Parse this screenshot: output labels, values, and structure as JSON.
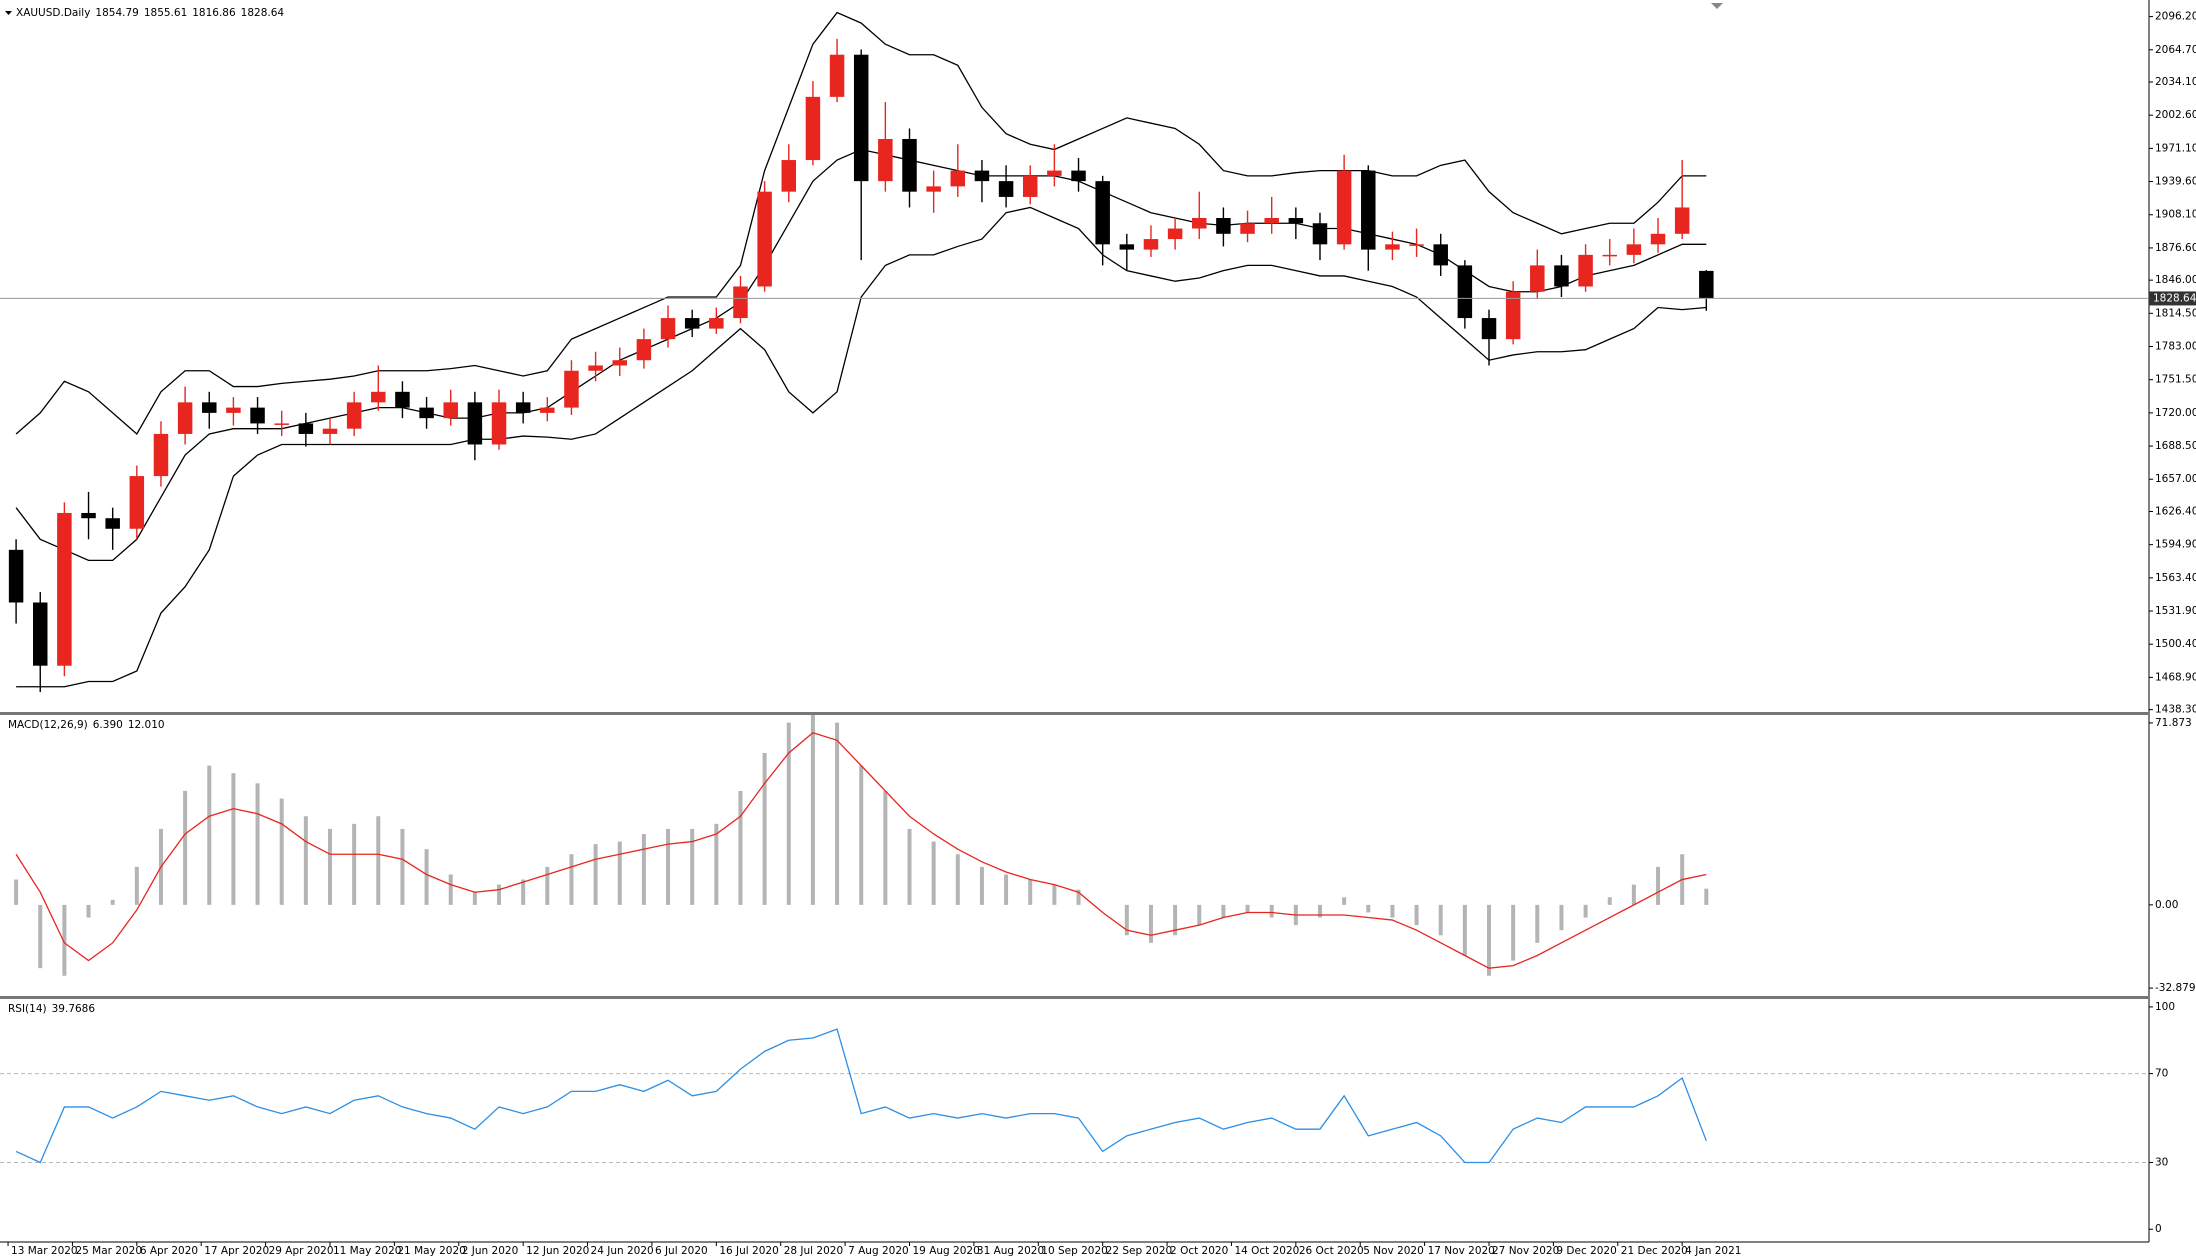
{
  "chart_data": [
    {
      "type": "candlestick",
      "title": "XAUUSD.Daily",
      "up_color": "#e8251f",
      "down_color": "#000000",
      "band_color": "#000000",
      "price_line_color": "#9a9a9a",
      "x": [
        1,
        4,
        7,
        10,
        13,
        16,
        19,
        22,
        25,
        28,
        31,
        34,
        37,
        40,
        43,
        46,
        49,
        52,
        55,
        58,
        61,
        64,
        67,
        70,
        73,
        76,
        79,
        82,
        85,
        88,
        91,
        94,
        97,
        100,
        103,
        106,
        109,
        112,
        115,
        118,
        121,
        124,
        127,
        130,
        133,
        136,
        139,
        142,
        145,
        148,
        151,
        154,
        157,
        160,
        163,
        166,
        169,
        172,
        175,
        178,
        181,
        184,
        187,
        190,
        193,
        196,
        199,
        202,
        205,
        208,
        211
      ],
      "open": [
        1590,
        1540,
        1480,
        1625,
        1620,
        1610,
        1660,
        1700,
        1730,
        1720,
        1725,
        1710,
        1710,
        1700,
        1705,
        1730,
        1740,
        1725,
        1715,
        1730,
        1690,
        1730,
        1720,
        1725,
        1760,
        1765,
        1770,
        1790,
        1810,
        1800,
        1810,
        1840,
        1930,
        1960,
        2020,
        2060,
        1940,
        1980,
        1930,
        1935,
        1950,
        1940,
        1925,
        1945,
        1950,
        1940,
        1880,
        1875,
        1885,
        1895,
        1905,
        1890,
        1900,
        1905,
        1900,
        1880,
        1950,
        1875,
        1880,
        1880,
        1860,
        1810,
        1790,
        1835,
        1860,
        1840,
        1870,
        1870,
        1880,
        1890,
        1854.79
      ],
      "high": [
        1600,
        1550,
        1635,
        1645,
        1630,
        1670,
        1712,
        1745,
        1740,
        1735,
        1735,
        1722,
        1720,
        1715,
        1740,
        1765,
        1750,
        1735,
        1742,
        1740,
        1742,
        1740,
        1735,
        1770,
        1778,
        1782,
        1800,
        1822,
        1818,
        1820,
        1850,
        1940,
        1975,
        2035,
        2075,
        2065,
        2015,
        1990,
        1950,
        1975,
        1960,
        1955,
        1955,
        1975,
        1962,
        1945,
        1890,
        1898,
        1905,
        1930,
        1915,
        1912,
        1925,
        1915,
        1910,
        1965,
        1955,
        1892,
        1895,
        1890,
        1865,
        1818,
        1845,
        1875,
        1870,
        1880,
        1885,
        1895,
        1905,
        1960,
        1855.61
      ],
      "low": [
        1520,
        1455,
        1470,
        1600,
        1590,
        1600,
        1650,
        1690,
        1705,
        1708,
        1700,
        1698,
        1688,
        1690,
        1698,
        1722,
        1715,
        1705,
        1708,
        1675,
        1685,
        1710,
        1712,
        1718,
        1750,
        1755,
        1762,
        1782,
        1792,
        1795,
        1805,
        1835,
        1920,
        1955,
        2015,
        1865,
        1930,
        1915,
        1910,
        1925,
        1920,
        1915,
        1918,
        1935,
        1930,
        1860,
        1855,
        1868,
        1875,
        1885,
        1878,
        1882,
        1890,
        1885,
        1865,
        1875,
        1855,
        1865,
        1868,
        1850,
        1800,
        1765,
        1785,
        1828,
        1830,
        1835,
        1860,
        1862,
        1872,
        1885,
        1816.86
      ],
      "close": [
        1540,
        1480,
        1625,
        1620,
        1610,
        1660,
        1700,
        1730,
        1720,
        1725,
        1710,
        1710,
        1700,
        1705,
        1730,
        1740,
        1725,
        1715,
        1730,
        1690,
        1730,
        1720,
        1725,
        1760,
        1765,
        1770,
        1790,
        1810,
        1800,
        1810,
        1840,
        1930,
        1960,
        2020,
        2060,
        1940,
        1980,
        1930,
        1935,
        1950,
        1940,
        1925,
        1945,
        1950,
        1940,
        1880,
        1875,
        1885,
        1895,
        1905,
        1890,
        1900,
        1905,
        1900,
        1880,
        1950,
        1875,
        1880,
        1880,
        1860,
        1810,
        1790,
        1835,
        1860,
        1840,
        1870,
        1870,
        1880,
        1890,
        1915,
        1828.64
      ],
      "bands": {
        "upper": [
          1700,
          1720,
          1750,
          1740,
          1720,
          1700,
          1740,
          1760,
          1760,
          1745,
          1745,
          1748,
          1750,
          1752,
          1755,
          1760,
          1760,
          1760,
          1762,
          1765,
          1760,
          1755,
          1760,
          1790,
          1800,
          1810,
          1820,
          1830,
          1830,
          1830,
          1860,
          1950,
          2010,
          2070,
          2100,
          2090,
          2070,
          2060,
          2060,
          2050,
          2010,
          1985,
          1975,
          1970,
          1980,
          1990,
          2000,
          1995,
          1990,
          1975,
          1950,
          1945,
          1945,
          1948,
          1950,
          1950,
          1950,
          1945,
          1945,
          1955,
          1960,
          1930,
          1910,
          1900,
          1890,
          1895,
          1900,
          1900,
          1920,
          1945,
          1945
        ],
        "middle": [
          1630,
          1600,
          1590,
          1580,
          1580,
          1600,
          1640,
          1680,
          1700,
          1705,
          1705,
          1705,
          1710,
          1715,
          1720,
          1725,
          1725,
          1720,
          1715,
          1715,
          1720,
          1720,
          1725,
          1740,
          1755,
          1770,
          1780,
          1790,
          1800,
          1810,
          1825,
          1860,
          1900,
          1940,
          1960,
          1970,
          1965,
          1960,
          1955,
          1950,
          1945,
          1945,
          1945,
          1945,
          1940,
          1930,
          1920,
          1910,
          1905,
          1900,
          1898,
          1900,
          1900,
          1900,
          1895,
          1895,
          1890,
          1885,
          1880,
          1870,
          1855,
          1840,
          1835,
          1835,
          1840,
          1850,
          1855,
          1860,
          1870,
          1880,
          1880
        ],
        "lower": [
          1460,
          1460,
          1460,
          1465,
          1465,
          1475,
          1530,
          1555,
          1590,
          1660,
          1680,
          1690,
          1690,
          1690,
          1690,
          1690,
          1690,
          1690,
          1690,
          1695,
          1695,
          1698,
          1697,
          1695,
          1700,
          1715,
          1730,
          1745,
          1760,
          1780,
          1800,
          1780,
          1740,
          1720,
          1740,
          1830,
          1860,
          1870,
          1870,
          1878,
          1885,
          1910,
          1915,
          1905,
          1895,
          1870,
          1855,
          1850,
          1845,
          1848,
          1855,
          1860,
          1860,
          1855,
          1850,
          1850,
          1845,
          1840,
          1830,
          1810,
          1790,
          1770,
          1775,
          1778,
          1778,
          1780,
          1790,
          1800,
          1820,
          1818,
          1820
        ]
      },
      "xlim": [
        -1,
        266
      ],
      "ylim": [
        1437,
        2101.5
      ],
      "yticks": [
        {
          "value": 2096.2,
          "label": "2096.20"
        },
        {
          "value": 2064.7,
          "label": "2064.70"
        },
        {
          "value": 2034.1,
          "label": "2034.10"
        },
        {
          "value": 2002.6,
          "label": "2002.60"
        },
        {
          "value": 1971.1,
          "label": "1971.10"
        },
        {
          "value": 1939.6,
          "label": "1939.60"
        },
        {
          "value": 1908.1,
          "label": "1908.10"
        },
        {
          "value": 1876.6,
          "label": "1876.60"
        },
        {
          "value": 1846,
          "label": "1846.00"
        },
        {
          "value": 1814.5,
          "label": "1814.50"
        },
        {
          "value": 1783,
          "label": "1783.00"
        },
        {
          "value": 1751.5,
          "label": "1751.50"
        },
        {
          "value": 1720,
          "label": "1720.00"
        },
        {
          "value": 1688.5,
          "label": "1688.50"
        },
        {
          "value": 1657,
          "label": "1657.00"
        },
        {
          "value": 1626.4,
          "label": "1626.40"
        },
        {
          "value": 1594.9,
          "label": "1594.90"
        },
        {
          "value": 1563.4,
          "label": "1563.40"
        },
        {
          "value": 1531.9,
          "label": "1531.90"
        },
        {
          "value": 1500.4,
          "label": "1500.40"
        },
        {
          "value": 1468.9,
          "label": "1468.90"
        },
        {
          "value": 1438.3,
          "label": "1438.30"
        }
      ]
    },
    {
      "type": "macd",
      "title": "MACD(12,26,9)",
      "histogram_color": "#b4b4b4",
      "signal_color": "#e8251f",
      "x": [
        1,
        4,
        7,
        10,
        13,
        16,
        19,
        22,
        25,
        28,
        31,
        34,
        37,
        40,
        43,
        46,
        49,
        52,
        55,
        58,
        61,
        64,
        67,
        70,
        73,
        76,
        79,
        82,
        85,
        88,
        91,
        94,
        97,
        100,
        103,
        106,
        109,
        112,
        115,
        118,
        121,
        124,
        127,
        130,
        133,
        136,
        139,
        142,
        145,
        148,
        151,
        154,
        157,
        160,
        163,
        166,
        169,
        172,
        175,
        178,
        181,
        184,
        187,
        190,
        193,
        196,
        199,
        202,
        205,
        208,
        211
      ],
      "histogram": [
        10,
        -25,
        -28,
        -5,
        2,
        15,
        30,
        45,
        55,
        52,
        48,
        42,
        35,
        30,
        32,
        35,
        30,
        22,
        12,
        5,
        8,
        10,
        15,
        20,
        24,
        25,
        28,
        30,
        30,
        32,
        45,
        60,
        72,
        75,
        72,
        55,
        45,
        30,
        25,
        20,
        15,
        12,
        10,
        8,
        6,
        0,
        -12,
        -15,
        -12,
        -8,
        -5,
        -3,
        -5,
        -8,
        -5,
        3,
        -3,
        -5,
        -8,
        -12,
        -20,
        -28,
        -22,
        -15,
        -10,
        -5,
        3,
        8,
        15,
        20,
        6.39
      ],
      "histogram_value_labels": [
        null,
        null,
        null,
        null,
        null,
        null,
        null,
        null,
        null,
        null,
        null,
        null,
        null,
        null,
        null,
        null,
        null,
        null,
        null,
        null,
        null,
        null,
        null,
        null,
        null,
        null,
        null,
        null,
        null,
        null,
        null,
        null,
        null,
        null,
        null,
        null,
        null,
        null,
        null,
        null,
        null,
        null,
        null,
        null,
        null,
        null,
        null,
        null,
        null,
        null,
        null,
        null,
        null,
        null,
        null,
        null,
        null,
        null,
        null,
        null,
        null,
        null,
        null,
        null,
        null,
        null,
        null,
        null,
        null,
        null,
        "6.390"
      ],
      "signal": [
        20,
        5,
        -15,
        -22,
        -15,
        -2,
        15,
        28,
        35,
        38,
        36,
        32,
        25,
        20,
        20,
        20,
        18,
        12,
        8,
        5,
        6,
        9,
        12,
        15,
        18,
        20,
        22,
        24,
        25,
        28,
        35,
        48,
        60,
        68,
        65,
        55,
        45,
        35,
        28,
        22,
        17,
        13,
        10,
        8,
        5,
        -3,
        -10,
        -12,
        -10,
        -8,
        -5,
        -3,
        -3,
        -4,
        -4,
        -4,
        -5,
        -6,
        -10,
        -15,
        -20,
        -25,
        -24,
        -20,
        -15,
        -10,
        -5,
        0,
        5,
        10,
        12.01
      ],
      "signal_value_labels": [
        null,
        null,
        null,
        null,
        null,
        null,
        null,
        null,
        null,
        null,
        null,
        null,
        null,
        null,
        null,
        null,
        null,
        null,
        null,
        null,
        null,
        null,
        null,
        null,
        null,
        null,
        null,
        null,
        null,
        null,
        null,
        null,
        null,
        null,
        null,
        null,
        null,
        null,
        null,
        null,
        null,
        null,
        null,
        null,
        null,
        null,
        null,
        null,
        null,
        null,
        null,
        null,
        null,
        null,
        null,
        null,
        null,
        null,
        null,
        null,
        null,
        null,
        null,
        null,
        null,
        null,
        null,
        null,
        null,
        null,
        "12.010"
      ],
      "xlim": [
        -1,
        266
      ],
      "ylim": [
        -35.6,
        74.6
      ],
      "yticks": [
        71.873,
        {
          "value": 0,
          "label": "0.00"
        },
        -32.879
      ]
    },
    {
      "type": "line",
      "title": "RSI(14)",
      "color": "#2b8fe6",
      "level_color": "#b8b8b8",
      "x": [
        1,
        4,
        7,
        10,
        13,
        16,
        19,
        22,
        25,
        28,
        31,
        34,
        37,
        40,
        43,
        46,
        49,
        52,
        55,
        58,
        61,
        64,
        67,
        70,
        73,
        76,
        79,
        82,
        85,
        88,
        91,
        94,
        97,
        100,
        103,
        106,
        109,
        112,
        115,
        118,
        121,
        124,
        127,
        130,
        133,
        136,
        139,
        142,
        145,
        148,
        151,
        154,
        157,
        160,
        163,
        166,
        169,
        172,
        175,
        178,
        181,
        184,
        187,
        190,
        193,
        196,
        199,
        202,
        205,
        208,
        211
      ],
      "values": [
        35,
        30,
        55,
        55,
        50,
        55,
        62,
        60,
        58,
        60,
        55,
        52,
        55,
        52,
        58,
        60,
        55,
        52,
        50,
        45,
        55,
        52,
        55,
        62,
        62,
        65,
        62,
        67,
        60,
        62,
        72,
        80,
        85,
        86,
        90,
        52,
        55,
        50,
        52,
        50,
        52,
        50,
        52,
        52,
        50,
        35,
        42,
        45,
        48,
        50,
        45,
        48,
        50,
        45,
        45,
        60,
        42,
        45,
        48,
        42,
        30,
        30,
        45,
        50,
        48,
        55,
        55,
        55,
        60,
        68,
        39.7686
      ],
      "levels": [
        70,
        30
      ],
      "xlim": [
        -1,
        266
      ],
      "ylim": [
        -4.4,
        103.1
      ],
      "yticks": [
        100,
        70,
        30,
        0
      ],
      "xticks": [
        {
          "value": 0,
          "label": "13 Mar 2020"
        },
        {
          "value": 8,
          "label": "25 Mar 2020"
        },
        {
          "value": 16,
          "label": "6 Apr 2020"
        },
        {
          "value": 24,
          "label": "17 Apr 2020"
        },
        {
          "value": 32,
          "label": "29 Apr 2020"
        },
        {
          "value": 40,
          "label": "11 May 2020"
        },
        {
          "value": 48,
          "label": "21 May 2020"
        },
        {
          "value": 56,
          "label": "2 Jun 2020"
        },
        {
          "value": 64,
          "label": "12 Jun 2020"
        },
        {
          "value": 72,
          "label": "24 Jun 2020"
        },
        {
          "value": 80,
          "label": "6 Jul 2020"
        },
        {
          "value": 88,
          "label": "16 Jul 2020"
        },
        {
          "value": 96,
          "label": "28 Jul 2020"
        },
        {
          "value": 104,
          "label": "7 Aug 2020"
        },
        {
          "value": 112,
          "label": "19 Aug 2020"
        },
        {
          "value": 120,
          "label": "31 Aug 2020"
        },
        {
          "value": 128,
          "label": "10 Sep 2020"
        },
        {
          "value": 136,
          "label": "22 Sep 2020"
        },
        {
          "value": 144,
          "label": "2 Oct 2020"
        },
        {
          "value": 152,
          "label": "14 Oct 2020"
        },
        {
          "value": 160,
          "label": "26 Oct 2020"
        },
        {
          "value": 168,
          "label": "5 Nov 2020"
        },
        {
          "value": 176,
          "label": "17 Nov 2020"
        },
        {
          "value": 184,
          "label": "27 Nov 2020"
        },
        {
          "value": 192,
          "label": "9 Dec 2020"
        },
        {
          "value": 200,
          "label": "21 Dec 2020"
        },
        {
          "value": 208,
          "label": "4 Jan 2021"
        }
      ]
    }
  ]
}
